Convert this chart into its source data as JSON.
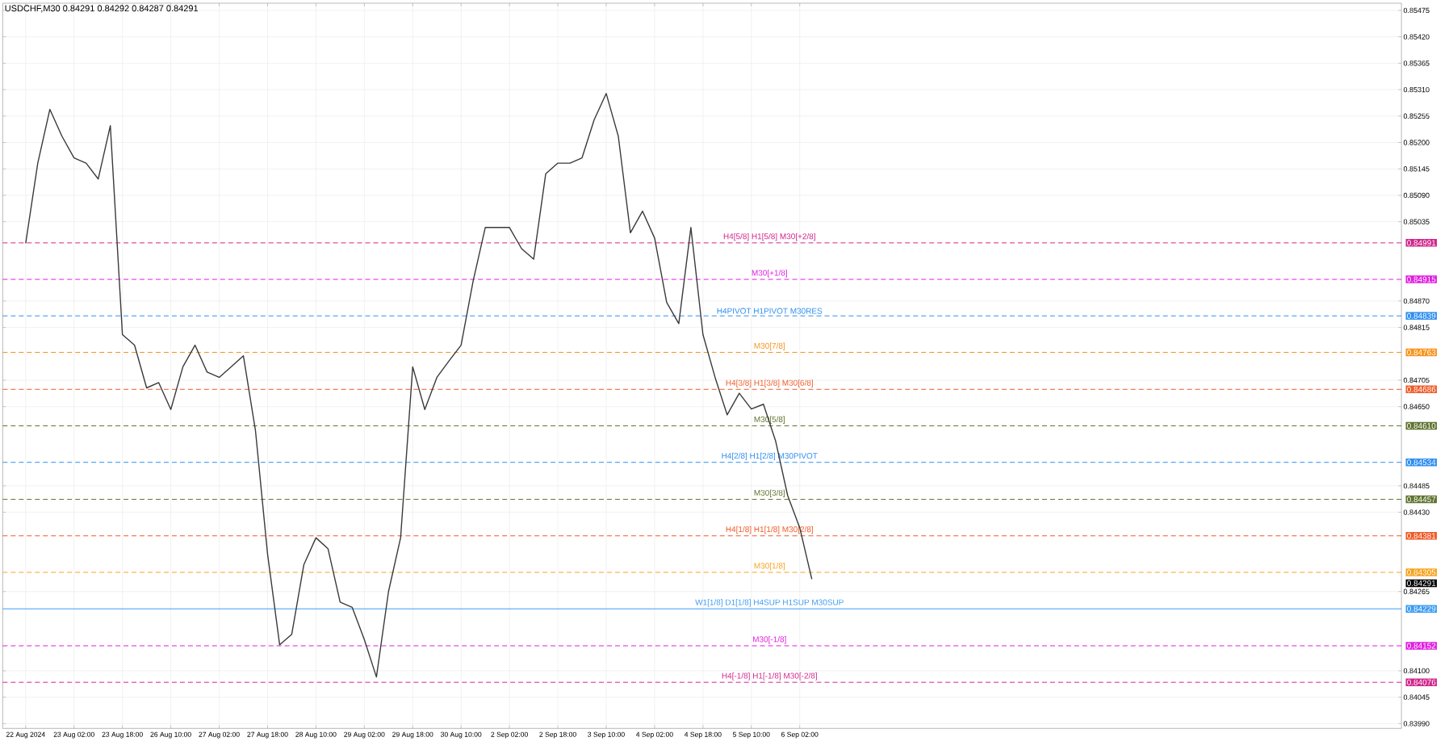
{
  "chart_data": {
    "type": "line",
    "title": "USDCHF,M30  0.84291 0.84292 0.84287 0.84291",
    "color": "#3a3a3a",
    "marker": "none",
    "grid": true,
    "categories": [
      "22 Aug 2024",
      null,
      null,
      null,
      "23 Aug 02:00",
      null,
      null,
      null,
      "23 Aug 18:00",
      null,
      null,
      null,
      "26 Aug 10:00",
      null,
      null,
      null,
      "27 Aug 02:00",
      null,
      null,
      null,
      "27 Aug 18:00",
      null,
      null,
      null,
      "28 Aug 10:00",
      null,
      null,
      null,
      "29 Aug 02:00",
      null,
      null,
      null,
      "29 Aug 18:00",
      null,
      null,
      null,
      "30 Aug 10:00",
      null,
      null,
      null,
      "2 Sep 02:00",
      null,
      null,
      null,
      "2 Sep 18:00",
      null,
      null,
      null,
      "3 Sep 10:00",
      null,
      null,
      null,
      "4 Sep 02:00",
      null,
      null,
      null,
      "4 Sep 18:00",
      null,
      null,
      null,
      "5 Sep 10:00",
      null,
      null,
      null,
      "6 Sep 02:00",
      null
    ],
    "values": [
      0.8499,
      0.85157,
      0.85269,
      0.85213,
      0.85168,
      0.85157,
      0.85124,
      0.85235,
      0.848,
      0.84778,
      0.84689,
      0.847,
      0.84644,
      0.84733,
      0.84778,
      0.84722,
      0.84711,
      0.84733,
      0.84756,
      0.846,
      0.84343,
      0.84154,
      0.84176,
      0.84321,
      0.84377,
      0.84354,
      0.84243,
      0.84232,
      0.84165,
      0.84087,
      0.84265,
      0.84377,
      0.84733,
      0.84644,
      0.84711,
      0.84745,
      0.84778,
      0.84912,
      0.85023,
      0.85023,
      0.85023,
      0.84979,
      0.84957,
      0.85135,
      0.85157,
      0.85157,
      0.85168,
      0.85247,
      0.85302,
      0.85213,
      0.85012,
      0.85057,
      0.85001,
      0.84867,
      0.84823,
      0.85023,
      0.848,
      0.84711,
      0.84633,
      0.84678,
      0.84645,
      0.84655,
      0.84579,
      0.84465,
      0.84398,
      0.84291
    ],
    "ylim": [
      0.8398,
      0.8549
    ],
    "yticks": [
      {
        "value": 0.85475,
        "label": "0.85475"
      },
      {
        "value": 0.8542,
        "label": "0.85420"
      },
      {
        "value": 0.85365,
        "label": "0.85365"
      },
      {
        "value": 0.8531,
        "label": "0.85310"
      },
      {
        "value": 0.85255,
        "label": "0.85255"
      },
      {
        "value": 0.852,
        "label": "0.85200"
      },
      {
        "value": 0.85145,
        "label": "0.85145"
      },
      {
        "value": 0.8509,
        "label": "0.85090"
      },
      {
        "value": 0.85035,
        "label": "0.85035"
      },
      {
        "value": 0.8487,
        "label": "0.84870"
      },
      {
        "value": 0.84815,
        "label": "0.84815"
      },
      {
        "value": 0.84705,
        "label": "0.84705"
      },
      {
        "value": 0.8465,
        "label": "0.84650"
      },
      {
        "value": 0.84485,
        "label": "0.84485"
      },
      {
        "value": 0.8443,
        "label": "0.84430"
      },
      {
        "value": 0.84265,
        "label": "0.84265"
      },
      {
        "value": 0.841,
        "label": "0.84100"
      },
      {
        "value": 0.84045,
        "label": "0.84045"
      },
      {
        "value": 0.8399,
        "label": "0.83990"
      }
    ],
    "ref_lines": [
      {
        "axis": "y",
        "value": 0.84991,
        "label": "H4[5/8] H1[5/8] M30[+2/8]",
        "color": "#d1268c",
        "line_style": "dashed"
      },
      {
        "axis": "y",
        "value": 0.84915,
        "label": "M30[+1/8]",
        "color": "#e01ee0",
        "line_style": "dashed"
      },
      {
        "axis": "y",
        "value": 0.84839,
        "label": "H4PIVOT H1PIVOT M30RES",
        "color": "#2f8ef0",
        "line_style": "dashed"
      },
      {
        "axis": "y",
        "value": 0.84763,
        "label": "M30[7/8]",
        "color": "#f7941d",
        "line_style": "dashed"
      },
      {
        "axis": "y",
        "value": 0.84686,
        "label": "H4[3/8] H1[3/8] M30[6/8]",
        "color": "#f05a28",
        "line_style": "dashed"
      },
      {
        "axis": "y",
        "value": 0.8461,
        "label": "M30[5/8]",
        "color": "#5f7431",
        "line_style": "dashed"
      },
      {
        "axis": "y",
        "value": 0.84534,
        "label": "H4[2/8] H1[2/8] M30PIVOT",
        "color": "#2f8ef0",
        "line_style": "dashed"
      },
      {
        "axis": "y",
        "value": 0.84457,
        "label": "M30[3/8]",
        "color": "#5f7431",
        "line_style": "dashed"
      },
      {
        "axis": "y",
        "value": 0.84381,
        "label": "H4[1/8] H1[1/8] M30[2/8]",
        "color": "#f05a28",
        "line_style": "dashed"
      },
      {
        "axis": "y",
        "value": 0.84305,
        "label": "M30[1/8]",
        "color": "#f7a21d",
        "line_style": "dashed"
      },
      {
        "axis": "y",
        "value": 0.84229,
        "label": "W1[1/8] D1[1/8] H4SUP H1SUP M30SUP",
        "color": "#3c9cf2",
        "line_style": "solid"
      },
      {
        "axis": "y",
        "value": 0.84152,
        "label": "M30[-1/8]",
        "color": "#e01ee0",
        "line_style": "dashed"
      },
      {
        "axis": "y",
        "value": 0.84076,
        "label": "H4[-1/8] H1[-1/8] M30[-2/8]",
        "color": "#d1268c",
        "line_style": "dashed"
      }
    ],
    "annotations": [
      "0.84991",
      "0.84915",
      "0.84839",
      "0.84763",
      "0.84686",
      "0.84610",
      "0.84534",
      "0.84457",
      "0.84381",
      "0.84305",
      "0.84229",
      "0.84152",
      "0.84076",
      "0.84291"
    ]
  }
}
